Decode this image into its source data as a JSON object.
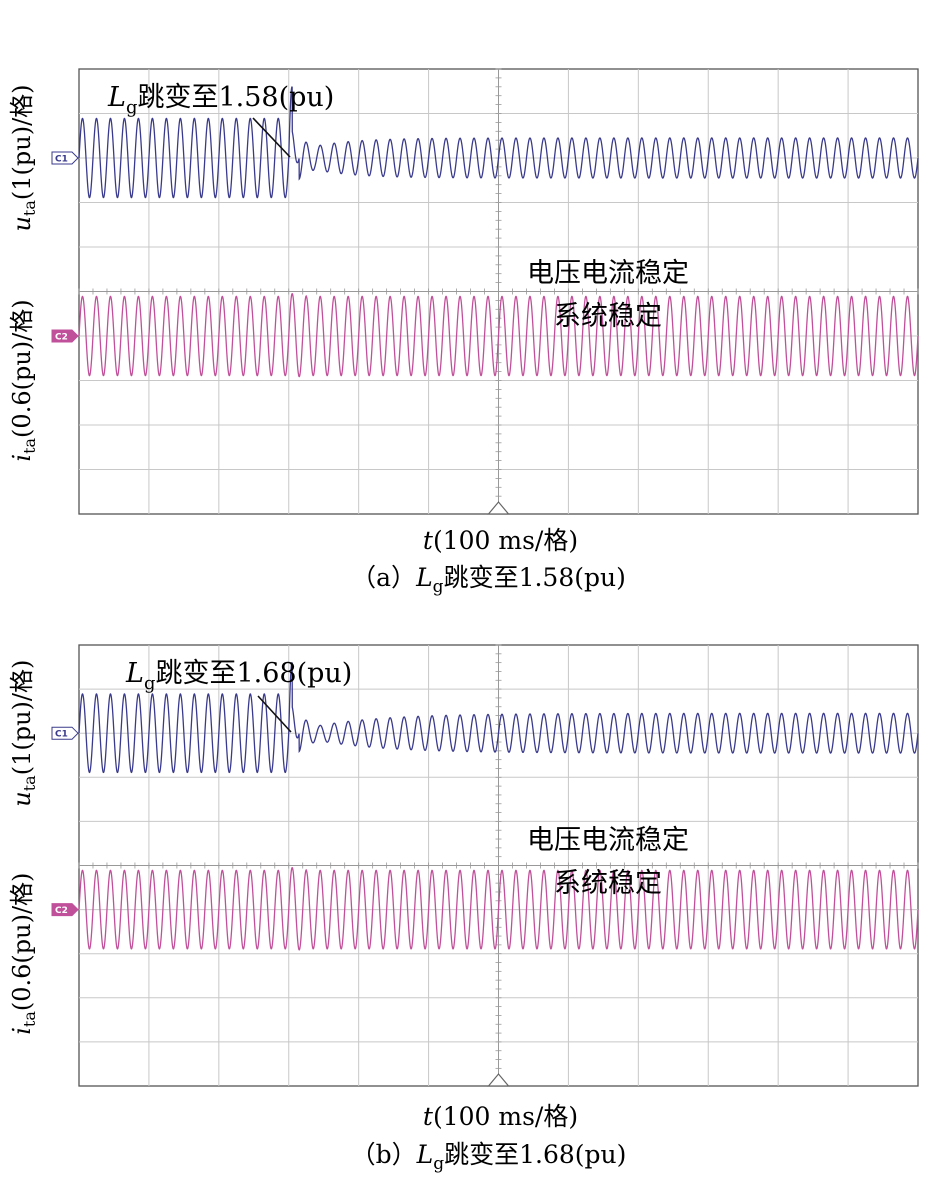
{
  "chart_data": [
    {
      "id": "a",
      "type": "line",
      "caption": "（a）Lg跳变至1.58(pu)",
      "caption_prefix": "（a）",
      "caption_L": "L",
      "caption_sub": "g",
      "caption_rest": "跳变至1.58(pu)",
      "annotation": {
        "L": "L",
        "sub": "g",
        "rest": "跳变至1.58(pu)"
      },
      "status_lines": [
        "电压电流稳定",
        "系统稳定"
      ],
      "xlabel": {
        "italic": "t",
        "rest": "(100 ms/格)"
      },
      "ylabel_top": {
        "italic": "u",
        "sub": "ta",
        "rest": "(1(pu)/格)"
      },
      "ylabel_bottom": {
        "italic": "i",
        "sub": "ta",
        "rest": "(0.6(pu)/格)"
      },
      "grid": {
        "x_divisions": 12,
        "y_divisions": 10
      },
      "x_range_ms": [
        0,
        1200
      ],
      "step_time_ms": 300,
      "frequency_hz": 50,
      "channels": [
        {
          "name": "C1",
          "label": "C1",
          "color": "#3a3a8c",
          "offset_div": 2.0,
          "amp_before": 0.89,
          "amp_after_steady": 0.45,
          "dip_amp": 0.2,
          "recovery_ms": 130
        },
        {
          "name": "C2",
          "label": "C2",
          "color": "#c0509a",
          "offset_div": 6.0,
          "amp_before": 0.89,
          "amp_after_steady": 0.89
        }
      ]
    },
    {
      "id": "b",
      "type": "line",
      "caption": "（b）Lg跳变至1.68(pu)",
      "caption_prefix": "（b）",
      "caption_L": "L",
      "caption_sub": "g",
      "caption_rest": "跳变至1.68(pu)",
      "annotation": {
        "L": "L",
        "sub": "g",
        "rest": "跳变至1.68(pu)"
      },
      "status_lines": [
        "电压电流稳定",
        "系统稳定"
      ],
      "xlabel": {
        "italic": "t",
        "rest": "(100 ms/格)"
      },
      "ylabel_top": {
        "italic": "u",
        "sub": "ta",
        "rest": "(1(pu)/格)"
      },
      "ylabel_bottom": {
        "italic": "i",
        "sub": "ta",
        "rest": "(0.6(pu)/格)"
      },
      "grid": {
        "x_divisions": 12,
        "y_divisions": 10
      },
      "x_range_ms": [
        0,
        1200
      ],
      "step_time_ms": 300,
      "frequency_hz": 50,
      "channels": [
        {
          "name": "C1",
          "label": "C1",
          "color": "#3a3a8c",
          "offset_div": 2.0,
          "amp_before": 0.89,
          "amp_after_steady": 0.45,
          "dip_amp": 0.1,
          "recovery_ms": 220
        },
        {
          "name": "C2",
          "label": "C2",
          "color": "#c0509a",
          "offset_div": 6.0,
          "amp_before": 0.89,
          "amp_after_steady": 0.89
        }
      ]
    }
  ]
}
